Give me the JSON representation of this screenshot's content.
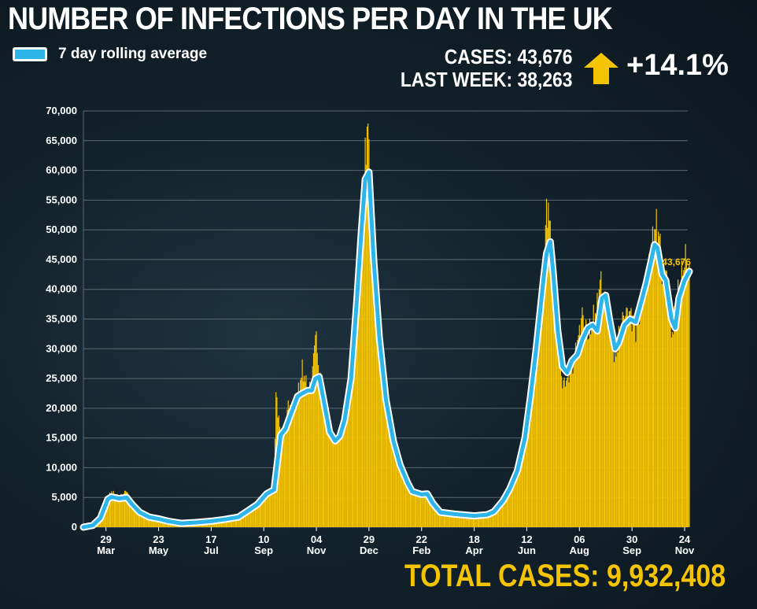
{
  "header": {
    "title": "NUMBER OF INFECTIONS PER DAY IN THE UK",
    "legend_label": "7 day rolling average",
    "cases_line": "CASES: 43,676",
    "last_week_line": "LAST WEEK: 38,263",
    "change": "+14.1%",
    "change_direction": "up-arrow-icon",
    "total": "TOTAL CASES: 9,932,408"
  },
  "colors": {
    "background": "#12222c",
    "bars": "#f5c400",
    "rolling_average": "#2db4e8",
    "rolling_outline": "#ffffff",
    "accent_text": "#f5c400"
  },
  "chart_data": {
    "type": "bar",
    "title": "NUMBER OF INFECTIONS PER DAY IN THE UK",
    "ylim": [
      0,
      70000
    ],
    "y_ticks": [
      "0",
      "5,000",
      "10,000",
      "15,000",
      "20,000",
      "25,000",
      "30,000",
      "35,000",
      "40,000",
      "45,000",
      "50,000",
      "55,000",
      "60,000",
      "65,000",
      "70,000"
    ],
    "x_tick_days": [
      "29",
      "23",
      "17",
      "10",
      "04",
      "29",
      "22",
      "18",
      "12",
      "06",
      "30",
      "24"
    ],
    "x_tick_months": [
      "Mar",
      "May",
      "Jul",
      "Sep",
      "Nov",
      "Dec",
      "Feb",
      "Apr",
      "Jun",
      "Aug",
      "Sep",
      "Nov"
    ],
    "x_tick_positions": [
      24,
      80,
      136,
      192,
      248,
      304,
      360,
      416,
      472,
      528,
      584,
      640
    ],
    "x_range": [
      0,
      640
    ],
    "grid": true,
    "last_value_label": "43,676",
    "series": [
      {
        "name": "7 day rolling average",
        "style": "line",
        "points": [
          [
            0,
            0
          ],
          [
            10,
            300
          ],
          [
            18,
            1500
          ],
          [
            26,
            4700
          ],
          [
            30,
            5100
          ],
          [
            38,
            4800
          ],
          [
            46,
            5000
          ],
          [
            52,
            3800
          ],
          [
            60,
            2500
          ],
          [
            70,
            1700
          ],
          [
            80,
            1400
          ],
          [
            90,
            1000
          ],
          [
            104,
            650
          ],
          [
            120,
            800
          ],
          [
            136,
            1000
          ],
          [
            150,
            1300
          ],
          [
            165,
            1700
          ],
          [
            185,
            3800
          ],
          [
            195,
            5600
          ],
          [
            203,
            6300
          ],
          [
            210,
            15500
          ],
          [
            215,
            16500
          ],
          [
            222,
            19500
          ],
          [
            228,
            22000
          ],
          [
            233,
            22500
          ],
          [
            239,
            23000
          ],
          [
            243,
            23000
          ],
          [
            247,
            25000
          ],
          [
            251,
            25300
          ],
          [
            255,
            22000
          ],
          [
            262,
            16000
          ],
          [
            268,
            14500
          ],
          [
            273,
            15300
          ],
          [
            278,
            18000
          ],
          [
            285,
            25000
          ],
          [
            291,
            38000
          ],
          [
            296,
            50000
          ],
          [
            300,
            58500
          ],
          [
            304,
            59700
          ],
          [
            309,
            45000
          ],
          [
            315,
            32000
          ],
          [
            322,
            21500
          ],
          [
            330,
            14500
          ],
          [
            337,
            10500
          ],
          [
            345,
            7500
          ],
          [
            350,
            6000
          ],
          [
            360,
            5500
          ],
          [
            366,
            5600
          ],
          [
            372,
            4000
          ],
          [
            380,
            2500
          ],
          [
            395,
            2200
          ],
          [
            416,
            1900
          ],
          [
            430,
            2100
          ],
          [
            437,
            2600
          ],
          [
            447,
            4500
          ],
          [
            454,
            6500
          ],
          [
            462,
            9500
          ],
          [
            470,
            15000
          ],
          [
            476,
            22000
          ],
          [
            482,
            30000
          ],
          [
            486,
            36000
          ],
          [
            490,
            42000
          ],
          [
            493,
            46000
          ],
          [
            497,
            48000
          ],
          [
            500,
            43000
          ],
          [
            505,
            33000
          ],
          [
            510,
            27000
          ],
          [
            515,
            26000
          ],
          [
            520,
            28000
          ],
          [
            526,
            29000
          ],
          [
            531,
            31500
          ],
          [
            537,
            33500
          ],
          [
            542,
            34000
          ],
          [
            547,
            33000
          ],
          [
            552,
            38500
          ],
          [
            556,
            39000
          ],
          [
            560,
            35000
          ],
          [
            566,
            30000
          ],
          [
            570,
            31000
          ],
          [
            576,
            34000
          ],
          [
            582,
            35000
          ],
          [
            588,
            34500
          ],
          [
            594,
            38000
          ],
          [
            599,
            41000
          ],
          [
            604,
            44500
          ],
          [
            608,
            47500
          ],
          [
            611,
            47000
          ],
          [
            616,
            42500
          ],
          [
            620,
            41500
          ],
          [
            626,
            35000
          ],
          [
            630,
            33500
          ],
          [
            634,
            38500
          ],
          [
            640,
            41500
          ],
          [
            645,
            43000
          ]
        ]
      },
      {
        "name": "Daily cases",
        "style": "bars",
        "points": [
          [
            0,
            0
          ],
          [
            10,
            300
          ],
          [
            18,
            1500
          ],
          [
            26,
            5000
          ],
          [
            30,
            6000
          ],
          [
            38,
            5000
          ],
          [
            46,
            6200
          ],
          [
            52,
            3800
          ],
          [
            60,
            2500
          ],
          [
            70,
            1700
          ],
          [
            80,
            1400
          ],
          [
            90,
            1000
          ],
          [
            104,
            650
          ],
          [
            120,
            800
          ],
          [
            136,
            1000
          ],
          [
            150,
            1300
          ],
          [
            165,
            1700
          ],
          [
            185,
            3800
          ],
          [
            195,
            5600
          ],
          [
            203,
            7000
          ],
          [
            205,
            22500
          ],
          [
            210,
            15500
          ],
          [
            215,
            16500
          ],
          [
            218,
            21000
          ],
          [
            222,
            19500
          ],
          [
            228,
            22000
          ],
          [
            233,
            26500
          ],
          [
            239,
            23000
          ],
          [
            243,
            24000
          ],
          [
            247,
            33500
          ],
          [
            251,
            25300
          ],
          [
            255,
            22000
          ],
          [
            262,
            16000
          ],
          [
            268,
            14500
          ],
          [
            273,
            15300
          ],
          [
            278,
            18000
          ],
          [
            285,
            26000
          ],
          [
            291,
            38000
          ],
          [
            296,
            50000
          ],
          [
            301,
            65000
          ],
          [
            303,
            68000
          ],
          [
            306,
            51000
          ],
          [
            309,
            48000
          ],
          [
            315,
            30000
          ],
          [
            322,
            21500
          ],
          [
            330,
            14500
          ],
          [
            337,
            10500
          ],
          [
            345,
            7500
          ],
          [
            350,
            6000
          ],
          [
            360,
            5500
          ],
          [
            366,
            5800
          ],
          [
            372,
            4000
          ],
          [
            380,
            2500
          ],
          [
            395,
            2200
          ],
          [
            416,
            1900
          ],
          [
            430,
            2100
          ],
          [
            437,
            2600
          ],
          [
            447,
            4500
          ],
          [
            454,
            6500
          ],
          [
            462,
            9500
          ],
          [
            470,
            15000
          ],
          [
            476,
            22000
          ],
          [
            482,
            28000
          ],
          [
            486,
            36000
          ],
          [
            490,
            41000
          ],
          [
            493,
            54500
          ],
          [
            497,
            50500
          ],
          [
            500,
            43000
          ],
          [
            505,
            33000
          ],
          [
            510,
            24000
          ],
          [
            515,
            25000
          ],
          [
            520,
            27000
          ],
          [
            526,
            31000
          ],
          [
            531,
            36000
          ],
          [
            537,
            32000
          ],
          [
            542,
            34500
          ],
          [
            547,
            37000
          ],
          [
            550,
            42000
          ],
          [
            552,
            40000
          ],
          [
            556,
            38000
          ],
          [
            560,
            37000
          ],
          [
            566,
            28000
          ],
          [
            570,
            32000
          ],
          [
            576,
            36000
          ],
          [
            582,
            36000
          ],
          [
            588,
            33500
          ],
          [
            594,
            38000
          ],
          [
            599,
            42000
          ],
          [
            604,
            45000
          ],
          [
            607,
            49000
          ],
          [
            609,
            51000
          ],
          [
            611,
            49500
          ],
          [
            613,
            49500
          ],
          [
            616,
            41000
          ],
          [
            620,
            44000
          ],
          [
            626,
            32000
          ],
          [
            630,
            36000
          ],
          [
            634,
            40000
          ],
          [
            638,
            43000
          ],
          [
            641,
            45500
          ],
          [
            645,
            43000
          ]
        ]
      }
    ]
  }
}
